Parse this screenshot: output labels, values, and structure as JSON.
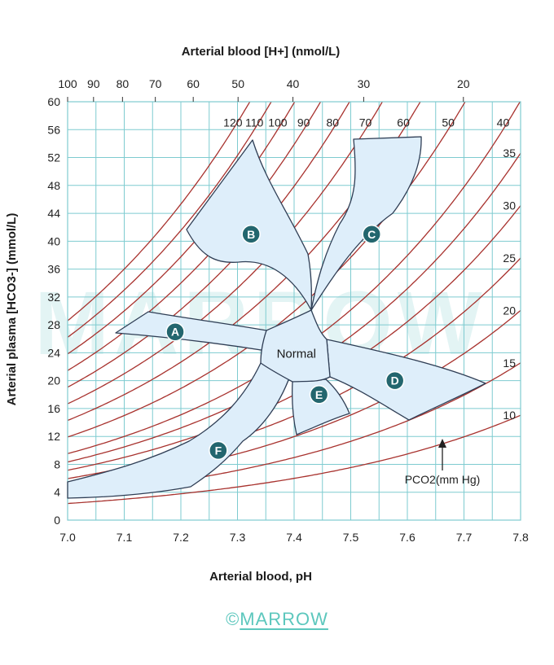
{
  "chart_data": {
    "type": "line",
    "title": "",
    "xlabel": "Arterial blood, pH",
    "ylabel": "Arterial plasma [HCO3-] (mmol/L)",
    "top_label": "Arterial blood [H+] (nmol/L)",
    "xlim": [
      7.0,
      7.8
    ],
    "ylim": [
      0,
      60
    ],
    "grid": true,
    "x_ticks": [
      "7.0",
      "7.1",
      "7.2",
      "7.3",
      "7.4",
      "7.5",
      "7.6",
      "7.7",
      "7.8"
    ],
    "y_ticks": [
      "0",
      "4",
      "8",
      "12",
      "16",
      "20",
      "24",
      "28",
      "32",
      "36",
      "40",
      "44",
      "48",
      "52",
      "56",
      "60"
    ],
    "top_ticks": [
      "100",
      "90",
      "80",
      "70",
      "60",
      "50",
      "40",
      "30",
      "20"
    ],
    "isobars": [
      120,
      110,
      100,
      90,
      80,
      70,
      60,
      50,
      40,
      35,
      30,
      25,
      20,
      15,
      10
    ],
    "isobar_unit_label": "PCO2(mm Hg)",
    "regions": [
      {
        "label": "A",
        "x": 7.19,
        "y": 27
      },
      {
        "label": "B",
        "x": 7.324,
        "y": 41
      },
      {
        "label": "C",
        "x": 7.537,
        "y": 41
      },
      {
        "label": "D",
        "x": 7.578,
        "y": 20
      },
      {
        "label": "E",
        "x": 7.444,
        "y": 18
      },
      {
        "label": "F",
        "x": 7.266,
        "y": 10
      },
      {
        "label": "Normal",
        "x": 7.404,
        "y": 24
      }
    ],
    "colors": {
      "grid": "#7ecbd0",
      "isobar": "#a8322e",
      "region_fill": "#deeefa",
      "region_stroke": "#2f3e55",
      "marker_fill": "#23666e",
      "watermark": "#e3f4f4"
    }
  },
  "watermark": "MARROW",
  "footer": {
    "copyright": "©",
    "brand": "MARROW"
  }
}
